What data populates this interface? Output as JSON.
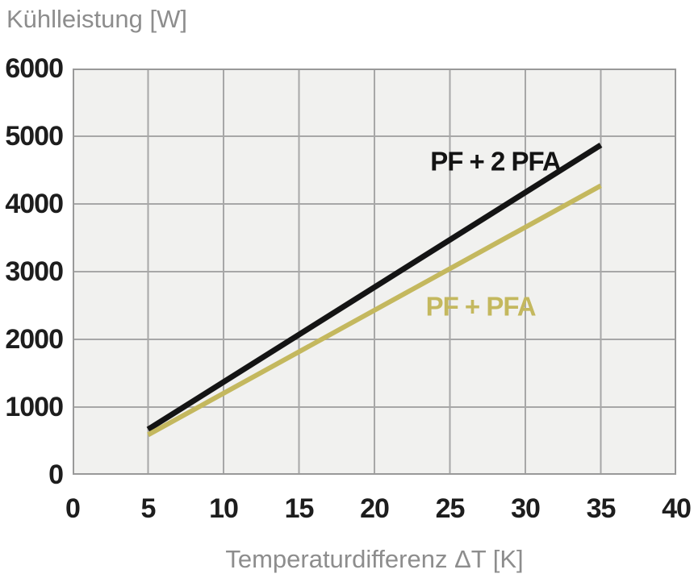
{
  "title": "Kühlleistung [W]",
  "colors": {
    "plot_background": "#f1f1ef",
    "grid": "#a7a7a7",
    "plot_border": "#999999",
    "axis_text": "#1d1d1d",
    "label_text": "#8d8d8d",
    "series_black": "#141414",
    "series_khaki": "#c4b85e"
  },
  "chart_data": {
    "type": "line",
    "title": "Kühlleistung [W]",
    "xlabel": "Temperaturdifferenz ΔT [K]",
    "ylabel": "Kühlleistung [W]",
    "xlim": [
      0,
      40
    ],
    "ylim": [
      0,
      6000
    ],
    "xticks": [
      0,
      5,
      10,
      15,
      20,
      25,
      30,
      35,
      40
    ],
    "yticks": [
      0,
      1000,
      2000,
      3000,
      4000,
      5000,
      6000
    ],
    "grid": true,
    "legend_position": "inline-labels",
    "series": [
      {
        "name": "PF + 2 PFA",
        "color": "#141414",
        "stroke_width": 7,
        "points": [
          [
            5,
            670
          ],
          [
            35,
            4870
          ]
        ]
      },
      {
        "name": "PF + PFA",
        "color": "#c4b85e",
        "stroke_width": 6,
        "points": [
          [
            5,
            590
          ],
          [
            35,
            4270
          ]
        ]
      }
    ],
    "annotations": [
      {
        "text": "PF + 2 PFA",
        "x": 23.7,
        "y": 4630,
        "color": "#141414"
      },
      {
        "text": "PF + PFA",
        "x": 23.4,
        "y": 2490,
        "color": "#c4b85e"
      }
    ]
  }
}
